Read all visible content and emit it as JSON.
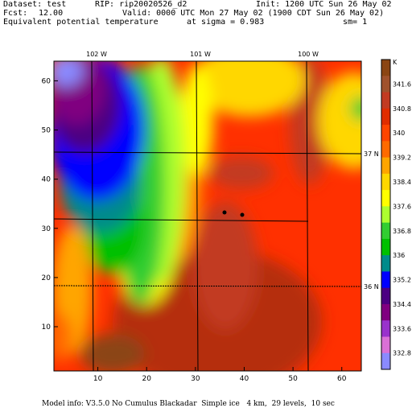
{
  "header": {
    "dataset_label": "Dataset: test",
    "rip_label": "RIP: rip20020526_d2",
    "init_label": "Init: 1200 UTC Sun 26 May 02",
    "fcst_label": "Fcst:",
    "fcst_value": "12.00",
    "valid_label": "Valid: 0000 UTC Mon 27 May 02 (1900 CDT Sun 26 May 02)",
    "field_label": "Equivalent potential temperature",
    "sigma_label": "at sigma = 0.983",
    "sm_label": "sm= 1"
  },
  "map": {
    "lon_labels": [
      "102 W",
      "101 W",
      "100 W"
    ],
    "lat_labels": [
      "37 N",
      "36 N"
    ],
    "x_ticks": [
      "10",
      "20",
      "30",
      "40",
      "50",
      "60"
    ],
    "y_ticks": [
      "10",
      "20",
      "30",
      "40",
      "50",
      "60"
    ],
    "x_range": [
      1,
      64
    ],
    "y_range": [
      1,
      64
    ]
  },
  "colorbar": {
    "unit": "K",
    "labels": [
      "341.6",
      "340.8",
      "340",
      "339.2",
      "338.4",
      "337.6",
      "336.8",
      "336",
      "335.2",
      "334.4",
      "333.6",
      "332.8"
    ],
    "colors": [
      "#8b4513",
      "#a0522d",
      "#c23b22",
      "#e02d00",
      "#ff4500",
      "#ff6a00",
      "#ffa500",
      "#ffd700",
      "#ffff00",
      "#adff2f",
      "#32cd32",
      "#00c000",
      "#008b8b",
      "#0000ff",
      "#4b0082",
      "#800080",
      "#9932cc",
      "#da70d6",
      "#8a8aff"
    ]
  },
  "footer": {
    "model_info": "Model info: V3.5.0 No Cumulus Blackadar  Simple ice   4 km,  29 levels,  10 sec"
  }
}
